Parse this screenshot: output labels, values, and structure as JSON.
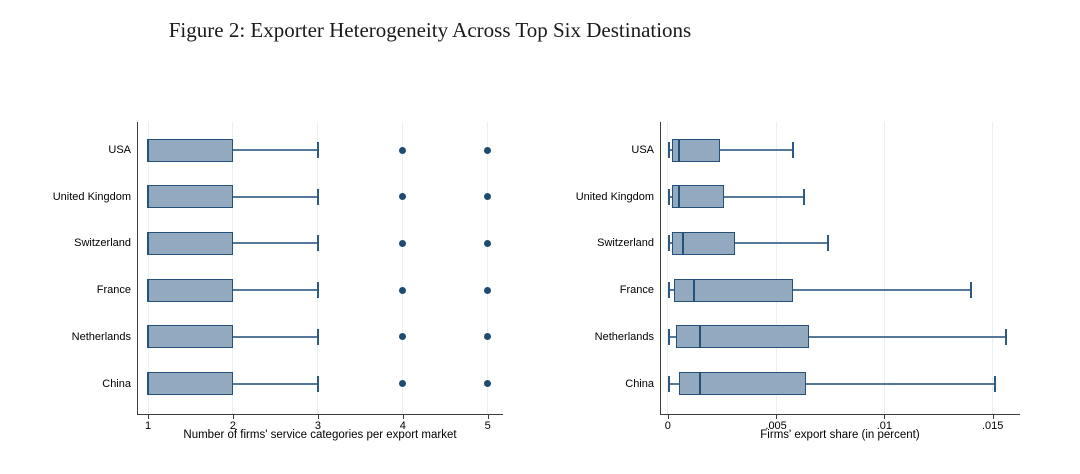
{
  "figure": {
    "title": "Figure 2: Exporter Heterogeneity Across Top Six Destinations"
  },
  "colors": {
    "box_fill": "#93A9C0",
    "box_border": "#255178",
    "median": "#255178",
    "whisker": "#54799B",
    "whisker_cap": "#2E5A82",
    "outlier_dot": "#1F4B73",
    "gridline": "#E8F1F2",
    "axis": "#3C3C3C",
    "text": "#000000"
  },
  "chart_data": [
    {
      "type": "box",
      "orientation": "horizontal",
      "title": "",
      "xlabel": "Number of firms' service categories per export market",
      "ylabel": "",
      "grid": true,
      "xlim": [
        0.87,
        5.18
      ],
      "xticks": [
        {
          "value": 1,
          "label": "1"
        },
        {
          "value": 2,
          "label": "2"
        },
        {
          "value": 3,
          "label": "3"
        },
        {
          "value": 4,
          "label": "4"
        },
        {
          "value": 5,
          "label": "5"
        }
      ],
      "categories": [
        "USA",
        "United Kingdom",
        "Switzerland",
        "France",
        "Netherlands",
        "China"
      ],
      "boxes": [
        {
          "category": "USA",
          "whisker_low": 1,
          "q1": 1,
          "median": 1,
          "q3": 2,
          "whisker_high": 3,
          "outliers": [
            4,
            5
          ]
        },
        {
          "category": "United Kingdom",
          "whisker_low": 1,
          "q1": 1,
          "median": 1,
          "q3": 2,
          "whisker_high": 3,
          "outliers": [
            4,
            5
          ]
        },
        {
          "category": "Switzerland",
          "whisker_low": 1,
          "q1": 1,
          "median": 1,
          "q3": 2,
          "whisker_high": 3,
          "outliers": [
            4,
            5
          ]
        },
        {
          "category": "France",
          "whisker_low": 1,
          "q1": 1,
          "median": 1,
          "q3": 2,
          "whisker_high": 3,
          "outliers": [
            4,
            5
          ]
        },
        {
          "category": "Netherlands",
          "whisker_low": 1,
          "q1": 1,
          "median": 1,
          "q3": 2,
          "whisker_high": 3,
          "outliers": [
            4,
            5
          ]
        },
        {
          "category": "China",
          "whisker_low": 1,
          "q1": 1,
          "median": 1,
          "q3": 2,
          "whisker_high": 3,
          "outliers": [
            4,
            5
          ]
        }
      ]
    },
    {
      "type": "box",
      "orientation": "horizontal",
      "title": "",
      "xlabel": "Firms' export share (in percent)",
      "ylabel": "",
      "grid": true,
      "xlim": [
        -0.00036,
        0.01626
      ],
      "xticks": [
        {
          "value": 0,
          "label": "0"
        },
        {
          "value": 0.005,
          "label": ".005"
        },
        {
          "value": 0.01,
          "label": ".01"
        },
        {
          "value": 0.015,
          "label": ".015"
        }
      ],
      "categories": [
        "USA",
        "United Kingdom",
        "Switzerland",
        "France",
        "Netherlands",
        "China"
      ],
      "boxes": [
        {
          "category": "USA",
          "whisker_low": 5e-05,
          "q1": 0.0002,
          "median": 0.0005,
          "q3": 0.0024,
          "whisker_high": 0.0058,
          "outliers": []
        },
        {
          "category": "United Kingdom",
          "whisker_low": 5e-05,
          "q1": 0.0002,
          "median": 0.0005,
          "q3": 0.0026,
          "whisker_high": 0.0063,
          "outliers": []
        },
        {
          "category": "Switzerland",
          "whisker_low": 5e-05,
          "q1": 0.0002,
          "median": 0.0007,
          "q3": 0.0031,
          "whisker_high": 0.0074,
          "outliers": []
        },
        {
          "category": "France",
          "whisker_low": 5e-05,
          "q1": 0.0003,
          "median": 0.0012,
          "q3": 0.0058,
          "whisker_high": 0.014,
          "outliers": []
        },
        {
          "category": "Netherlands",
          "whisker_low": 5e-05,
          "q1": 0.0004,
          "median": 0.0015,
          "q3": 0.0065,
          "whisker_high": 0.0156,
          "outliers": []
        },
        {
          "category": "China",
          "whisker_low": 5e-05,
          "q1": 0.0005,
          "median": 0.0015,
          "q3": 0.0064,
          "whisker_high": 0.0151,
          "outliers": []
        }
      ]
    }
  ]
}
